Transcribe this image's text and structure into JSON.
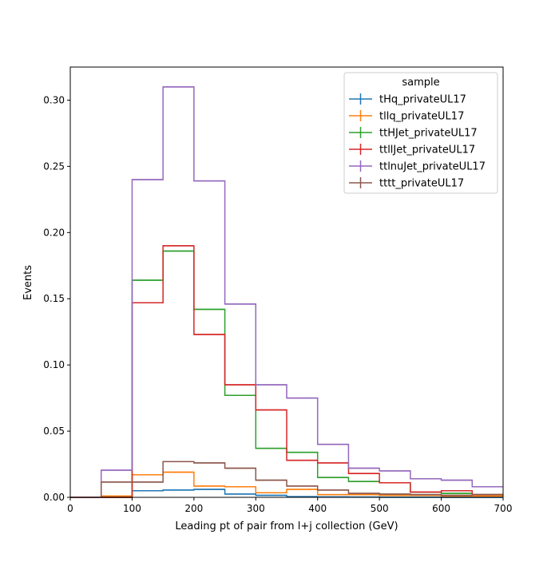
{
  "chart_data": {
    "type": "histogram-step",
    "title": "",
    "xlabel": "Leading pt of pair from l+j collection (GeV)",
    "ylabel": "Events",
    "xlim": [
      0,
      700
    ],
    "ylim": [
      0,
      0.325
    ],
    "xticks": [
      0,
      100,
      200,
      300,
      400,
      500,
      600,
      700
    ],
    "xtick_labels": [
      "0",
      "100",
      "200",
      "300",
      "400",
      "500",
      "600",
      "700"
    ],
    "yticks": [
      0.0,
      0.05,
      0.1,
      0.15,
      0.2,
      0.25,
      0.3
    ],
    "ytick_labels": [
      "0.00",
      "0.05",
      "0.10",
      "0.15",
      "0.20",
      "0.25",
      "0.30"
    ],
    "grid": false,
    "legend": {
      "title": "sample",
      "placement": "top-right"
    },
    "bin_edges": [
      0,
      50,
      100,
      150,
      200,
      250,
      300,
      350,
      400,
      450,
      500,
      550,
      600,
      650,
      700
    ],
    "series": [
      {
        "name": "tHq_privateUL17",
        "color": "#1f77b4",
        "values": [
          0.0,
          0.0002,
          0.005,
          0.0055,
          0.006,
          0.0025,
          0.0015,
          0.0005,
          0.0003,
          0.0002,
          0.0001,
          0.0001,
          0.0,
          0.0
        ]
      },
      {
        "name": "tllq_privateUL17",
        "color": "#ff7f0e",
        "values": [
          0.0,
          0.001,
          0.017,
          0.019,
          0.0085,
          0.008,
          0.0035,
          0.006,
          0.002,
          0.002,
          0.0015,
          0.0015,
          0.001,
          0.001
        ]
      },
      {
        "name": "ttHJet_privateUL17",
        "color": "#2ca02c",
        "values": [
          0.0,
          0.0,
          0.164,
          0.186,
          0.142,
          0.077,
          0.037,
          0.034,
          0.015,
          0.012,
          0.011,
          0.004,
          0.003,
          0.002
        ]
      },
      {
        "name": "ttllJet_privateUL17",
        "color": "#d62728",
        "values": [
          0.0,
          0.0,
          0.147,
          0.19,
          0.123,
          0.085,
          0.066,
          0.028,
          0.026,
          0.018,
          0.011,
          0.004,
          0.005,
          0.002
        ]
      },
      {
        "name": "ttlnuJet_privateUL17",
        "color": "#9467bd",
        "values": [
          0.0,
          0.0205,
          0.24,
          0.31,
          0.239,
          0.146,
          0.085,
          0.075,
          0.04,
          0.022,
          0.02,
          0.014,
          0.013,
          0.008
        ]
      },
      {
        "name": "tttt_privateUL17",
        "color": "#8c564b",
        "values": [
          0.0,
          0.0115,
          0.0115,
          0.027,
          0.026,
          0.022,
          0.013,
          0.0085,
          0.0055,
          0.003,
          0.0025,
          0.002,
          0.0015,
          0.002
        ]
      }
    ]
  }
}
